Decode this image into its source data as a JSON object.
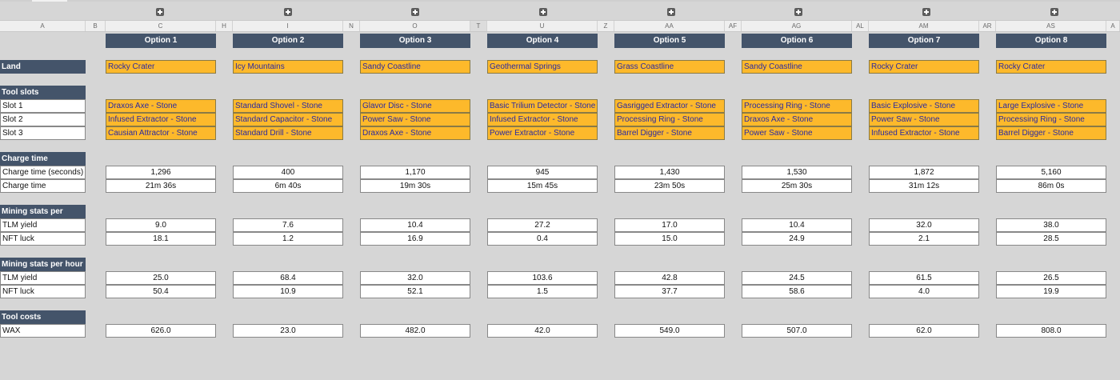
{
  "column_headers": [
    "A",
    "B",
    "C",
    "H",
    "I",
    "N",
    "O",
    "T",
    "U",
    "Z",
    "AA",
    "AF",
    "AG",
    "AL",
    "AM",
    "AR",
    "AS",
    "A"
  ],
  "sections": {
    "land": "Land",
    "tool_slots": "Tool slots",
    "charge_time": "Charge time",
    "mining_per_charge": "Mining stats per charge",
    "mining_per_hour": "Mining stats per hour",
    "tool_costs": "Tool costs"
  },
  "row_labels": {
    "slot1": "Slot 1",
    "slot2": "Slot 2",
    "slot3": "Slot 3",
    "charge_seconds": "Charge time (seconds)",
    "charge_time": "Charge time",
    "charge_tlm": "TLM yield",
    "charge_nft": "NFT luck",
    "hour_tlm": "TLM yield",
    "hour_nft": "NFT luck",
    "wax": "WAX"
  },
  "options": [
    {
      "name": "Option 1",
      "land": "Rocky Crater",
      "slot1": "Draxos Axe - Stone",
      "slot2": "Infused Extractor - Stone",
      "slot3": "Causian Attractor - Stone",
      "charge_seconds": "1,296",
      "charge_time": "21m 36s",
      "charge_tlm": "9.0",
      "charge_nft": "18.1",
      "hour_tlm": "25.0",
      "hour_nft": "50.4",
      "wax": "626.0"
    },
    {
      "name": "Option 2",
      "land": "Icy Mountains",
      "slot1": "Standard Shovel - Stone",
      "slot2": "Standard Capacitor - Stone",
      "slot3": "Standard Drill - Stone",
      "charge_seconds": "400",
      "charge_time": "6m 40s",
      "charge_tlm": "7.6",
      "charge_nft": "1.2",
      "hour_tlm": "68.4",
      "hour_nft": "10.9",
      "wax": "23.0"
    },
    {
      "name": "Option 3",
      "land": "Sandy Coastline",
      "slot1": "Glavor Disc - Stone",
      "slot2": "Power Saw - Stone",
      "slot3": "Draxos Axe - Stone",
      "charge_seconds": "1,170",
      "charge_time": "19m 30s",
      "charge_tlm": "10.4",
      "charge_nft": "16.9",
      "hour_tlm": "32.0",
      "hour_nft": "52.1",
      "wax": "482.0"
    },
    {
      "name": "Option 4",
      "land": "Geothermal Springs",
      "slot1": "Basic Trilium Detector - Stone",
      "slot2": "Infused Extractor - Stone",
      "slot3": "Power Extractor - Stone",
      "charge_seconds": "945",
      "charge_time": "15m 45s",
      "charge_tlm": "27.2",
      "charge_nft": "0.4",
      "hour_tlm": "103.6",
      "hour_nft": "1.5",
      "wax": "42.0"
    },
    {
      "name": "Option 5",
      "land": "Grass Coastline",
      "slot1": "Gasrigged Extractor - Stone",
      "slot2": "Processing Ring - Stone",
      "slot3": "Barrel Digger - Stone",
      "charge_seconds": "1,430",
      "charge_time": "23m 50s",
      "charge_tlm": "17.0",
      "charge_nft": "15.0",
      "hour_tlm": "42.8",
      "hour_nft": "37.7",
      "wax": "549.0"
    },
    {
      "name": "Option 6",
      "land": "Sandy Coastline",
      "slot1": "Processing Ring - Stone",
      "slot2": "Draxos Axe - Stone",
      "slot3": "Power Saw - Stone",
      "charge_seconds": "1,530",
      "charge_time": "25m 30s",
      "charge_tlm": "10.4",
      "charge_nft": "24.9",
      "hour_tlm": "24.5",
      "hour_nft": "58.6",
      "wax": "507.0"
    },
    {
      "name": "Option 7",
      "land": "Rocky Crater",
      "slot1": "Basic Explosive - Stone",
      "slot2": "Power Saw - Stone",
      "slot3": "Infused Extractor - Stone",
      "charge_seconds": "1,872",
      "charge_time": "31m 12s",
      "charge_tlm": "32.0",
      "charge_nft": "2.1",
      "hour_tlm": "61.5",
      "hour_nft": "4.0",
      "wax": "62.0"
    },
    {
      "name": "Option 8",
      "land": "Rocky Crater",
      "slot1": "Large Explosive - Stone",
      "slot2": "Processing Ring - Stone",
      "slot3": "Barrel Digger - Stone",
      "charge_seconds": "5,160",
      "charge_time": "86m 0s",
      "charge_tlm": "38.0",
      "charge_nft": "28.5",
      "hour_tlm": "26.5",
      "hour_nft": "19.9",
      "wax": "808.0"
    }
  ],
  "icons": {
    "expand": "plus-box-icon"
  },
  "colors": {
    "header_bg": "#44546a",
    "tool_bg": "#fdb92b",
    "tool_text": "#2a2aa0",
    "sheet_bg": "#d6d6d6"
  }
}
